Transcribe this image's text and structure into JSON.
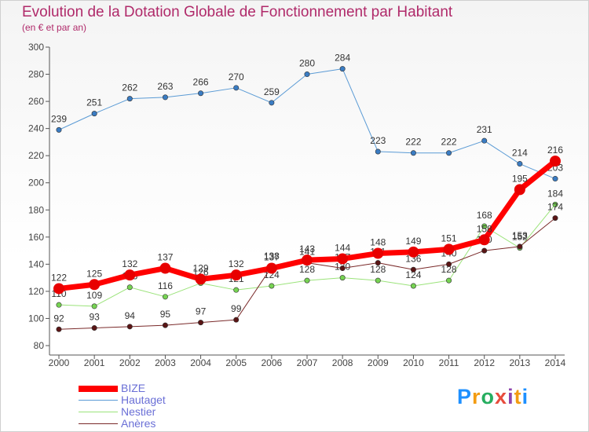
{
  "title": "Evolution de la Dotation Globale de Fonctionnement par Habitant",
  "subtitle": "(en € et par an)",
  "logo": "Proxiti",
  "chart_data": {
    "type": "line",
    "x": [
      "2000",
      "2001",
      "2002",
      "2003",
      "2004",
      "2005",
      "2006",
      "2007",
      "2008",
      "2009",
      "2010",
      "2011",
      "2012",
      "2013",
      "2014"
    ],
    "ylim": [
      80,
      300
    ],
    "yticks": [
      80,
      100,
      120,
      140,
      160,
      180,
      200,
      220,
      240,
      260,
      280,
      300
    ],
    "grid": false,
    "legend_position": "bottom-left",
    "series": [
      {
        "name": "Hautaget",
        "color": "#5b9bd5",
        "point_color": "#3a7cc3",
        "width": 1,
        "values": [
          239,
          251,
          262,
          263,
          266,
          270,
          259,
          280,
          284,
          223,
          222,
          222,
          231,
          214,
          203
        ]
      },
      {
        "name": "Nestier",
        "color": "#9be37a",
        "point_color": "#76d352",
        "width": 1,
        "values": [
          110,
          109,
          123,
          116,
          126,
          121,
          124,
          128,
          130,
          128,
          124,
          128,
          168,
          152,
          184
        ]
      },
      {
        "name": "Anères",
        "color": "#7a2a2a",
        "point_color": "#5a1515",
        "width": 1,
        "values": [
          92,
          93,
          94,
          95,
          97,
          99,
          138,
          141,
          137,
          141,
          136,
          140,
          150,
          153,
          174
        ]
      },
      {
        "name": "BIZE",
        "color": "#ff0000",
        "point_color": "#e80000",
        "width": 7,
        "values": [
          122,
          125,
          132,
          137,
          129,
          132,
          137,
          143,
          144,
          148,
          149,
          151,
          158,
          195,
          216
        ]
      }
    ]
  }
}
